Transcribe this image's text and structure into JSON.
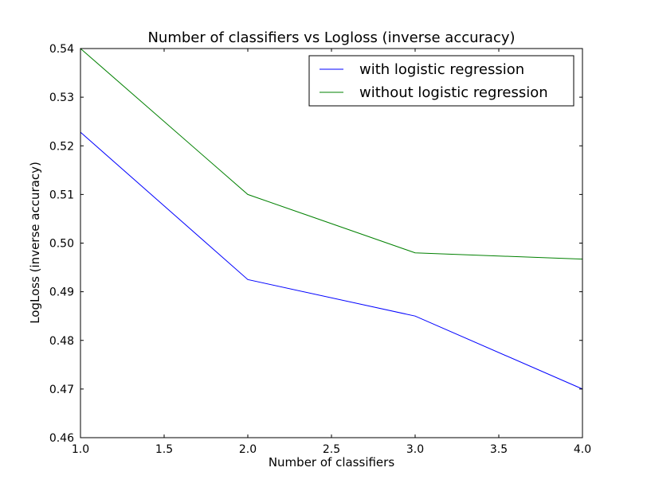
{
  "chart_data": {
    "type": "line",
    "title": "Number of classifiers vs Logloss (inverse accuracy)",
    "xlabel": "Number of classifiers",
    "ylabel": "LogLoss (inverse accuracy)",
    "xlim": [
      1.0,
      4.0
    ],
    "ylim": [
      0.46,
      0.54
    ],
    "xticks": [
      "1.0",
      "1.5",
      "2.0",
      "2.5",
      "3.0",
      "3.5",
      "4.0"
    ],
    "yticks": [
      "0.46",
      "0.47",
      "0.48",
      "0.49",
      "0.50",
      "0.51",
      "0.52",
      "0.53",
      "0.54"
    ],
    "grid": false,
    "legend_position": "top-right",
    "series": [
      {
        "name": "with logistic regression",
        "color": "#0000ff",
        "x": [
          1,
          2,
          3,
          4
        ],
        "y": [
          0.5228,
          0.4925,
          0.485,
          0.47
        ]
      },
      {
        "name": "without logistic regression",
        "color": "#008000",
        "x": [
          1,
          2,
          3,
          4
        ],
        "y": [
          0.54,
          0.51,
          0.498,
          0.4967
        ]
      }
    ]
  }
}
